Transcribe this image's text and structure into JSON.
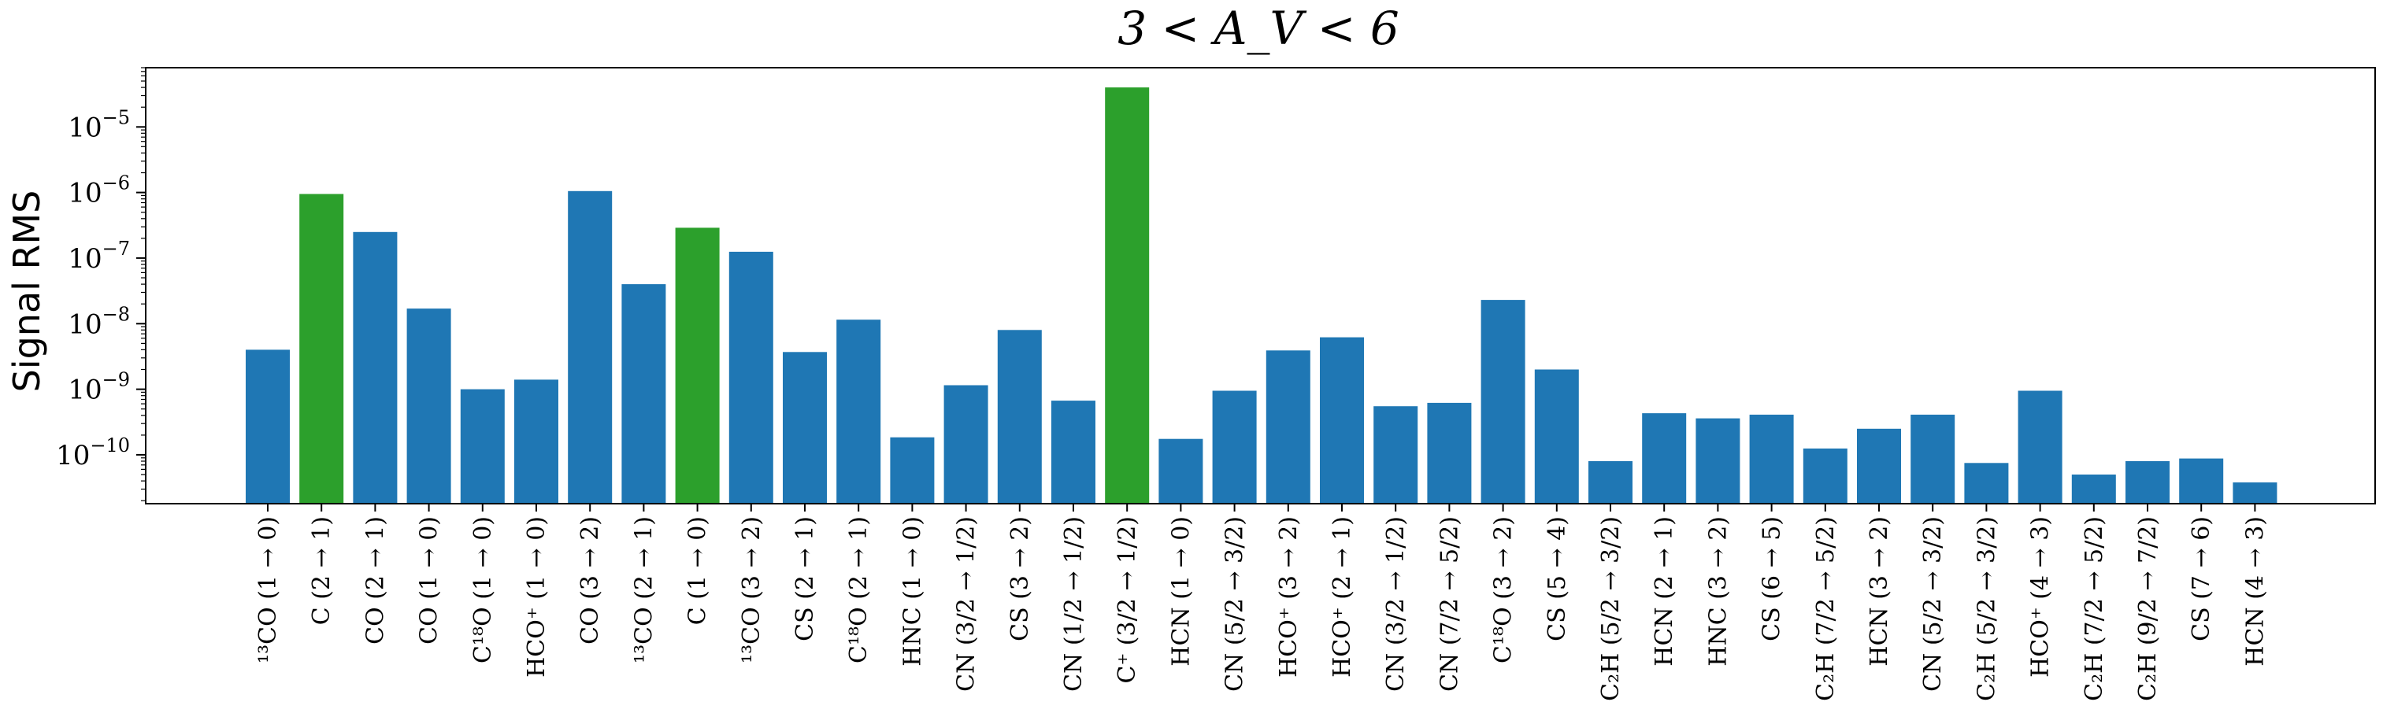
{
  "chart_data": {
    "type": "bar",
    "title": "3 < A_V < 6",
    "ylabel": "Signal RMS",
    "yscale": "log",
    "ylim": [
      1.8e-11,
      8e-05
    ],
    "ytick_values": [
      1e-10,
      1e-09,
      1e-08,
      1e-07,
      1e-06,
      1e-05
    ],
    "ytick_labels": [
      {
        "base": "10",
        "exp": "−10"
      },
      {
        "base": "10",
        "exp": "−9"
      },
      {
        "base": "10",
        "exp": "−8"
      },
      {
        "base": "10",
        "exp": "−7"
      },
      {
        "base": "10",
        "exp": "−6"
      },
      {
        "base": "10",
        "exp": "−5"
      }
    ],
    "colors": {
      "default": "#1f77b4",
      "highlight": "#2ca02c"
    },
    "categories": [
      "¹³CO (1 → 0)",
      "C (2 → 1)",
      "CO (2 → 1)",
      "CO (1 → 0)",
      "C¹⁸O (1 → 0)",
      "HCO⁺ (1 → 0)",
      "CO (3 → 2)",
      "¹³CO (2 → 1)",
      "C (1 → 0)",
      "¹³CO (3 → 2)",
      "CS (2 → 1)",
      "C¹⁸O (2 → 1)",
      "HNC (1 → 0)",
      "CN (3/2 → 1/2)",
      "CS (3 → 2)",
      "CN (1/2 → 1/2)",
      "C⁺ (3/2 → 1/2)",
      "HCN (1 → 0)",
      "CN (5/2 → 3/2)",
      "HCO⁺ (3 → 2)",
      "HCO⁺ (2 → 1)",
      "CN (3/2 → 1/2)",
      "CN (7/2 → 5/2)",
      "C¹⁸O (3 → 2)",
      "CS (5 → 4)",
      "C₂H (5/2 → 3/2)",
      "HCN (2 → 1)",
      "HNC (3 → 2)",
      "CS (6 → 5)",
      "C₂H (7/2 → 5/2)",
      "HCN (3 → 2)",
      "CN (5/2 → 3/2)",
      "C₂H (5/2 → 3/2)",
      "HCO⁺ (4 → 3)",
      "C₂H (7/2 → 5/2)",
      "C₂H (9/2 → 7/2)",
      "CS (7 → 6)",
      "HCN (4 → 3)"
    ],
    "values": [
      4e-09,
      9.5e-07,
      2.5e-07,
      1.7e-08,
      1e-09,
      1.4e-09,
      1.05e-06,
      4e-08,
      2.9e-07,
      1.25e-07,
      3.7e-09,
      1.15e-08,
      1.85e-10,
      1.15e-09,
      8e-09,
      6.7e-10,
      4e-05,
      1.75e-10,
      9.5e-10,
      3.9e-09,
      6.2e-09,
      5.5e-10,
      6.2e-10,
      2.3e-08,
      2e-09,
      8e-11,
      4.3e-10,
      3.6e-10,
      4.1e-10,
      1.25e-10,
      2.5e-10,
      4.1e-10,
      7.5e-11,
      9.5e-10,
      5e-11,
      8e-11,
      8.8e-11,
      3.8e-11
    ],
    "highlighted": [
      1,
      8,
      16
    ]
  }
}
